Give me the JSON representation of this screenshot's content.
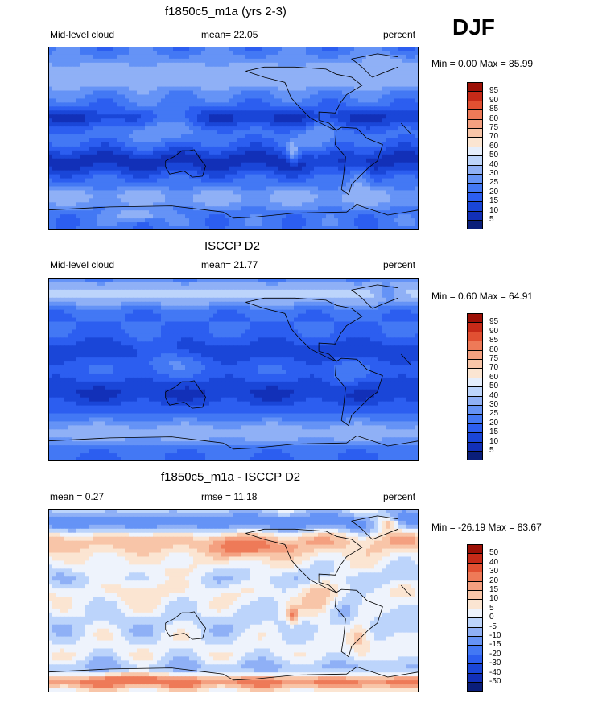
{
  "season": "DJF",
  "chart_data": [
    {
      "type": "heatmap",
      "title": "f1850c5_m1a (yrs 2-3)",
      "left_label": "Mid-level cloud",
      "stat_label": "mean=  22.05",
      "units": "percent",
      "minmax": "Min =   0.00 Max =  85.99",
      "levels": [
        5,
        10,
        15,
        20,
        25,
        30,
        40,
        50,
        60,
        70,
        75,
        80,
        85,
        90,
        95
      ],
      "level_labels": [
        "5",
        "10",
        "15",
        "20",
        "25",
        "30",
        "40",
        "50",
        "60",
        "70",
        "75",
        "80",
        "85",
        "90",
        "95"
      ],
      "colors": [
        "#0a1e7a",
        "#1230b8",
        "#1a46d8",
        "#2c5ef0",
        "#4378f4",
        "#6593f6",
        "#8fb0f6",
        "#bcd4fb",
        "#e5eefc",
        "#fbe5d2",
        "#f8c5a8",
        "#f4a080",
        "#ee7a58",
        "#e15032",
        "#c62a18",
        "#9c1006"
      ]
    },
    {
      "type": "heatmap",
      "title": "ISCCP D2",
      "left_label": "Mid-level cloud",
      "stat_label": "mean=  21.77",
      "units": "percent",
      "minmax": "Min =   0.60 Max =  64.91",
      "levels": [
        5,
        10,
        15,
        20,
        25,
        30,
        40,
        50,
        60,
        70,
        75,
        80,
        85,
        90,
        95
      ],
      "level_labels": [
        "5",
        "10",
        "15",
        "20",
        "25",
        "30",
        "40",
        "50",
        "60",
        "70",
        "75",
        "80",
        "85",
        "90",
        "95"
      ],
      "colors": [
        "#0a1e7a",
        "#1230b8",
        "#1a46d8",
        "#2c5ef0",
        "#4378f4",
        "#6593f6",
        "#8fb0f6",
        "#bcd4fb",
        "#e5eefc",
        "#fbe5d2",
        "#f8c5a8",
        "#f4a080",
        "#ee7a58",
        "#e15032",
        "#c62a18",
        "#9c1006"
      ]
    },
    {
      "type": "heatmap",
      "title": "f1850c5_m1a - ISCCP D2",
      "left_label": "mean =   0.27",
      "stat_label": "rmse =  11.18",
      "units": "percent",
      "minmax": "Min = -26.19 Max =  83.67",
      "levels": [
        -50,
        -40,
        -30,
        -20,
        -15,
        -10,
        -5,
        0,
        5,
        10,
        15,
        20,
        30,
        40,
        50
      ],
      "level_labels": [
        "-50",
        "-40",
        "-30",
        "-20",
        "-15",
        "-10",
        "-5",
        "0",
        "5",
        "10",
        "15",
        "20",
        "30",
        "40",
        "50"
      ],
      "colors": [
        "#0a1e7a",
        "#1230b8",
        "#1a46d8",
        "#2c5ef0",
        "#4378f4",
        "#6593f6",
        "#8fb0f6",
        "#bcd4fb",
        "#eef3fc",
        "#fbe5d2",
        "#f8c5a8",
        "#f4a080",
        "#ee7a58",
        "#e15032",
        "#c62a18",
        "#9c1006"
      ]
    }
  ]
}
